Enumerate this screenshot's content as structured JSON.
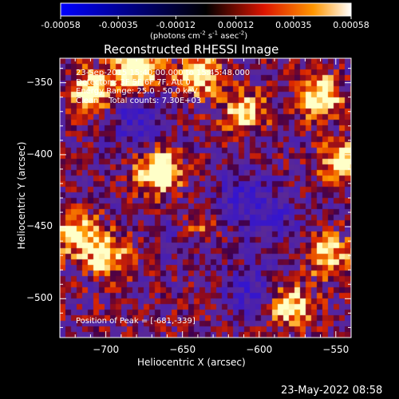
{
  "colorbar": {
    "tick_labels": [
      "-0.00058",
      "-0.00035",
      "-0.00012",
      "0.00012",
      "0.00035",
      "0.00058"
    ],
    "units": {
      "base": "(photons cm",
      "e1": "-2",
      "s": " s",
      "e2": "-1",
      "a": " asec",
      "e3": "-2",
      "end": ")"
    },
    "min": -0.00058,
    "max": 0.00058
  },
  "chart_data": {
    "type": "heatmap",
    "title": "Reconstructed RHESSI Image",
    "xlabel": "Heliocentric X (arcsec)",
    "ylabel": "Heliocentric Y (arcsec)",
    "xlim": [
      -730,
      -540
    ],
    "ylim": [
      -527,
      -333
    ],
    "x_ticks": [
      -700,
      -650,
      -600,
      -550
    ],
    "y_ticks": [
      -350,
      -400,
      -450,
      -500
    ],
    "annotations": {
      "time_range": "23-Sep-2015 15:40:00.000 to 15:45:48.000",
      "detectors": "Detectors: 3F 5F 6F 7F, Att 0",
      "energy": "Energy Range: 25.0 - 50.0 keV",
      "clean": "Clean    Total counts: 7.30E+03",
      "peak": "Position of Peak = [-681,-339]"
    },
    "peak": [
      -681,
      -339
    ],
    "bright_regions": [
      {
        "x": -680,
        "y": -340,
        "v": 0.95
      },
      {
        "x": -665,
        "y": -412,
        "v": 0.95
      },
      {
        "x": -708,
        "y": -355,
        "v": 0.75
      },
      {
        "x": -560,
        "y": -360,
        "v": 0.8
      },
      {
        "x": -545,
        "y": -405,
        "v": 0.75
      },
      {
        "x": -720,
        "y": -455,
        "v": 0.7
      },
      {
        "x": -700,
        "y": -470,
        "v": 0.65
      },
      {
        "x": -640,
        "y": -450,
        "v": 0.55
      },
      {
        "x": -580,
        "y": -505,
        "v": 0.7
      },
      {
        "x": -555,
        "y": -470,
        "v": 0.6
      },
      {
        "x": -610,
        "y": -370,
        "v": 0.6
      },
      {
        "x": -640,
        "y": -345,
        "v": 0.7
      }
    ],
    "dark_regions": [
      {
        "x": -680,
        "y": -375,
        "v": 0.5
      },
      {
        "x": -610,
        "y": -430,
        "v": 0.45
      },
      {
        "x": -645,
        "y": -450,
        "v": 0.4
      },
      {
        "x": -605,
        "y": -495,
        "v": 0.45
      },
      {
        "x": -590,
        "y": -445,
        "v": 0.35
      }
    ]
  },
  "footer": {
    "timestamp": "23-May-2022 08:58"
  }
}
